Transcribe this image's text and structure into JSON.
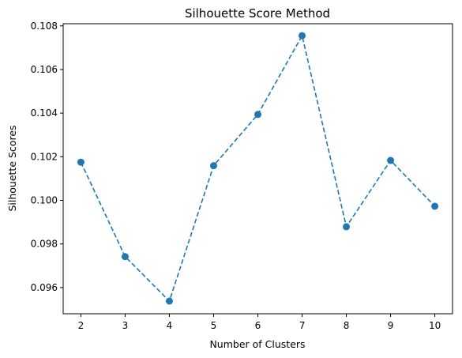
{
  "chart_data": {
    "type": "line",
    "title": "Silhouette Score Method",
    "xlabel": "Number of Clusters",
    "ylabel": "Silhouette Scores",
    "x": [
      2,
      3,
      4,
      5,
      6,
      7,
      8,
      9,
      10
    ],
    "series": [
      {
        "values": [
          0.10175,
          0.09742,
          0.09538,
          0.10159,
          0.10394,
          0.10755,
          0.09879,
          0.10183,
          0.09973
        ],
        "color": "#1f77b4",
        "line_style": "dashed",
        "marker": "circle"
      }
    ],
    "xlim": [
      1.6,
      10.4
    ],
    "ylim": [
      0.0948,
      0.1081
    ],
    "xticks": [
      "2",
      "3",
      "4",
      "5",
      "6",
      "7",
      "8",
      "9",
      "10"
    ],
    "yticks": [
      "0.096",
      "0.098",
      "0.100",
      "0.102",
      "0.104",
      "0.106",
      "0.108"
    ],
    "ytick_values": [
      0.096,
      0.098,
      0.1,
      0.102,
      0.104,
      0.106,
      0.108
    ],
    "grid": false,
    "legend": false
  }
}
